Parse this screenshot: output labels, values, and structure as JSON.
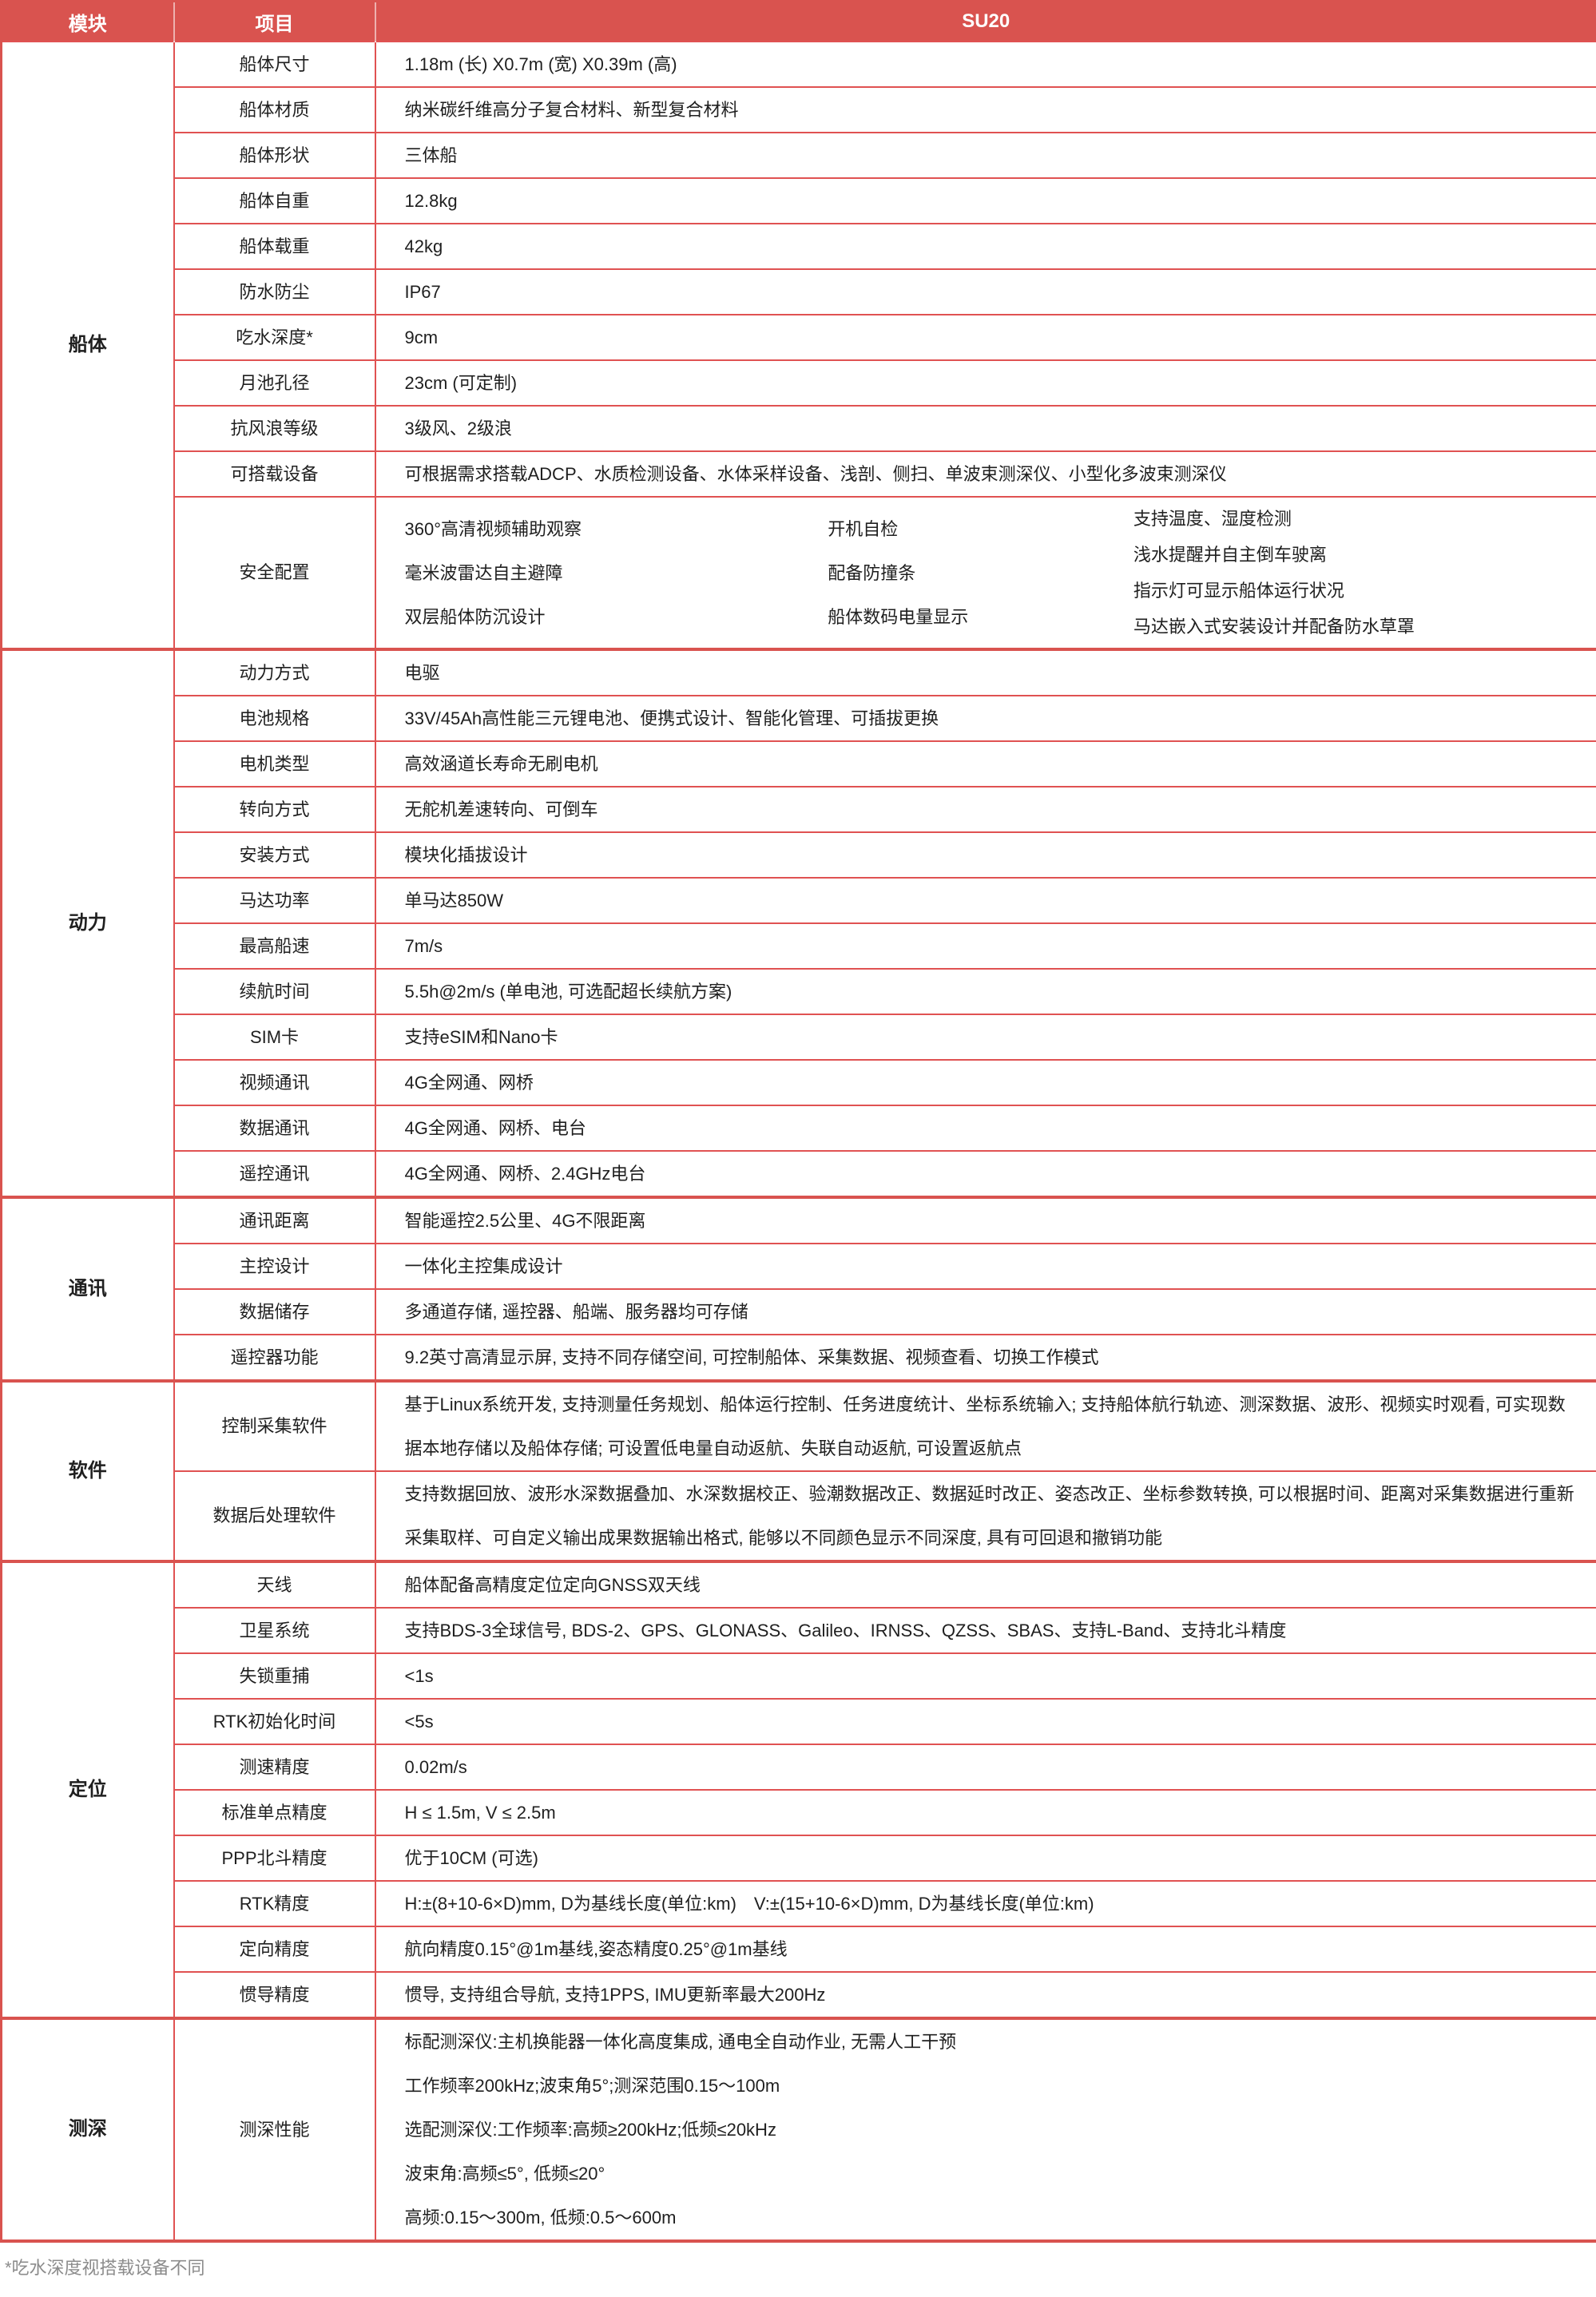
{
  "header": {
    "col_module": "模块",
    "col_item": "项目",
    "col_value": "SU20"
  },
  "colors": {
    "header_bg": "#d9534f",
    "row_border": "#e05252",
    "section_border": "#d9534f",
    "text": "#1f1f1f",
    "footnote_text": "#8c8c8c"
  },
  "sections": [
    {
      "module": "船体",
      "rows": [
        {
          "item": "船体尺寸",
          "value": "1.18m (长) X0.7m (宽) X0.39m (高)"
        },
        {
          "item": "船体材质",
          "value": "纳米碳纤维高分子复合材料、新型复合材料"
        },
        {
          "item": "船体形状",
          "value": "三体船"
        },
        {
          "item": "船体自重",
          "value": "12.8kg"
        },
        {
          "item": "船体载重",
          "value": "42kg"
        },
        {
          "item": "防水防尘",
          "value": "IP67"
        },
        {
          "item": "吃水深度*",
          "value": "9cm"
        },
        {
          "item": "月池孔径",
          "value": "23cm (可定制)"
        },
        {
          "item": "抗风浪等级",
          "value": "3级风、2级浪"
        },
        {
          "item": "可搭载设备",
          "value": "可根据需求搭载ADCP、水质检测设备、水体采样设备、浅剖、侧扫、单波束测深仪、小型化多波束测深仪"
        },
        {
          "item": "安全配置",
          "columns": [
            [
              "360°高清视频辅助观察",
              "毫米波雷达自主避障",
              "双层船体防沉设计"
            ],
            [
              "开机自检",
              "配备防撞条",
              "船体数码电量显示"
            ],
            [
              "支持温度、湿度检测",
              "浅水提醒并自主倒车驶离",
              "指示灯可显示船体运行状况",
              "马达嵌入式安装设计并配备防水草罩"
            ]
          ]
        }
      ]
    },
    {
      "module": "动力",
      "rows": [
        {
          "item": "动力方式",
          "value": "电驱"
        },
        {
          "item": "电池规格",
          "value": "33V/45Ah高性能三元锂电池、便携式设计、智能化管理、可插拔更换"
        },
        {
          "item": "电机类型",
          "value": "高效涵道长寿命无刷电机"
        },
        {
          "item": "转向方式",
          "value": "无舵机差速转向、可倒车"
        },
        {
          "item": "安装方式",
          "value": "模块化插拔设计"
        },
        {
          "item": "马达功率",
          "value": "单马达850W"
        },
        {
          "item": "最高船速",
          "value": "7m/s"
        },
        {
          "item": "续航时间",
          "value": "5.5h@2m/s (单电池, 可选配超长续航方案)"
        },
        {
          "item": "SIM卡",
          "value": "支持eSIM和Nano卡"
        },
        {
          "item": "视频通讯",
          "value": "4G全网通、网桥"
        },
        {
          "item": "数据通讯",
          "value": "4G全网通、网桥、电台"
        },
        {
          "item": "遥控通讯",
          "value": "4G全网通、网桥、2.4GHz电台"
        }
      ]
    },
    {
      "module": "通讯",
      "rows": [
        {
          "item": "通讯距离",
          "value": "智能遥控2.5公里、4G不限距离"
        },
        {
          "item": "主控设计",
          "value": "一体化主控集成设计"
        },
        {
          "item": "数据储存",
          "value": "多通道存储, 遥控器、船端、服务器均可存储"
        },
        {
          "item": "遥控器功能",
          "value": "9.2英寸高清显示屏, 支持不同存储空间, 可控制船体、采集数据、视频查看、切换工作模式"
        }
      ]
    },
    {
      "module": "软件",
      "rows": [
        {
          "item": "控制采集软件",
          "value": "基于Linux系统开发, 支持测量任务规划、船体运行控制、任务进度统计、坐标系统输入; 支持船体航行轨迹、测深数据、波形、视频实时观看, 可实现数据本地存储以及船体存储; 可设置低电量自动返航、失联自动返航, 可设置返航点",
          "multiline": true
        },
        {
          "item": "数据后处理软件",
          "value": "支持数据回放、波形水深数据叠加、水深数据校正、验潮数据改正、数据延时改正、姿态改正、坐标参数转换, 可以根据时间、距离对采集数据进行重新采集取样、可自定义输出成果数据输出格式, 能够以不同颜色显示不同深度, 具有可回退和撤销功能",
          "multiline": true
        }
      ]
    },
    {
      "module": "定位",
      "rows": [
        {
          "item": "天线",
          "value": "船体配备高精度定位定向GNSS双天线"
        },
        {
          "item": "卫星系统",
          "value": "支持BDS-3全球信号, BDS-2、GPS、GLONASS、Galileo、IRNSS、QZSS、SBAS、支持L-Band、支持北斗精度"
        },
        {
          "item": "失锁重捕",
          "value": "<1s"
        },
        {
          "item": "RTK初始化时间",
          "value": "<5s"
        },
        {
          "item": "测速精度",
          "value": "0.02m/s"
        },
        {
          "item": "标准单点精度",
          "value": "H ≤ 1.5m, V ≤ 2.5m"
        },
        {
          "item": "PPP北斗精度",
          "value": "优于10CM (可选)"
        },
        {
          "item": "RTK精度",
          "value": "H:±(8+10-6×D)mm, D为基线长度(单位:km)　V:±(15+10-6×D)mm, D为基线长度(单位:km)"
        },
        {
          "item": "定向精度",
          "value": "航向精度0.15°@1m基线,姿态精度0.25°@1m基线"
        },
        {
          "item": "惯导精度",
          "value": "惯导, 支持组合导航, 支持1PPS, IMU更新率最大200Hz"
        }
      ]
    },
    {
      "module": "测深",
      "rows": [
        {
          "item": "测深性能",
          "value_lines": [
            "标配测深仪:主机换能器一体化高度集成, 通电全自动作业, 无需人工干预",
            "工作频率200kHz;波束角5°;测深范围0.15～100m",
            "选配测深仪:工作频率:高频≥200kHz;低频≤20kHz",
            "波束角:高频≤5°, 低频≤20°",
            "高频:0.15～300m, 低频:0.5～600m"
          ]
        }
      ]
    }
  ],
  "footnote": "*吃水深度视搭载设备不同"
}
